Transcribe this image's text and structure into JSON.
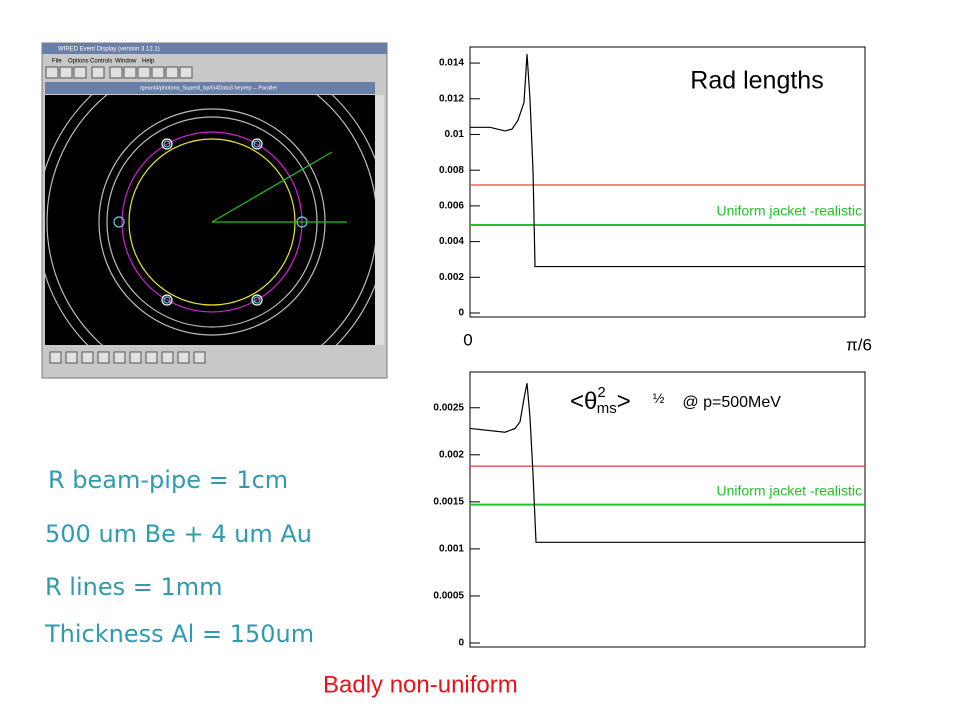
{
  "chart_data": [
    {
      "type": "line",
      "title": "Rad lengths",
      "xlim": [
        0,
        0.5236
      ],
      "xticks": [
        0,
        {
          "value": 0.5236,
          "label": "π/6"
        }
      ],
      "ylim": [
        0,
        0.0149
      ],
      "yticks": [
        0,
        0.002,
        0.004,
        0.006,
        0.008,
        0.01,
        0.012,
        0.014
      ],
      "series": [
        {
          "color": "#000000",
          "x": [
            0,
            0.0265,
            0.0464,
            0.0557,
            0.0636,
            0.0716,
            0.0756,
            0.0795,
            0.0835,
            0.0862,
            0.5236
          ],
          "values": [
            0.0104,
            0.0104,
            0.0102,
            0.0103,
            0.0108,
            0.0118,
            0.0145,
            0.012,
            0.008,
            0.0026,
            0.0026
          ]
        }
      ],
      "hlines": [
        {
          "color": "#e8413c",
          "value": 0.00717
        },
        {
          "color": "#22c02a",
          "value": 0.00493,
          "label": "Uniform jacket -realistic"
        }
      ]
    },
    {
      "type": "line",
      "title_parts": [
        "<θ",
        "2",
        "ms",
        ">",
        "½",
        "@ p=500MeV"
      ],
      "xlim": [
        0,
        0.5236
      ],
      "ylim": [
        0,
        0.00288
      ],
      "yticks": [
        0,
        0.0005,
        0.001,
        0.0015,
        0.002,
        0.0025
      ],
      "series": [
        {
          "color": "#000000",
          "x": [
            0,
            0.0464,
            0.0597,
            0.0663,
            0.0716,
            0.0756,
            0.0795,
            0.0835,
            0.0875,
            0.5236
          ],
          "values": [
            0.00228,
            0.00224,
            0.00228,
            0.00235,
            0.0026,
            0.00276,
            0.0024,
            0.0018,
            0.00107,
            0.00107
          ]
        }
      ],
      "hlines": [
        {
          "color": "#e8413c",
          "value": 0.00188
        },
        {
          "color": "#22c02a",
          "value": 0.00147,
          "label": "Uniform jacket -realistic"
        }
      ]
    }
  ],
  "screenshot": {
    "window_title": "WIRED Event Display (version 3.12.1)",
    "menu": [
      "File",
      "Options",
      "Controls",
      "Window",
      "Help"
    ],
    "view_title": "/geant4/photons_Super8_bp/G4Data3.heprep -- Parallel"
  },
  "notes": [
    "R beam-pipe = 1cm",
    "500 um Be + 4 um Au",
    "R lines = 1mm",
    "Thickness Al = 150um"
  ],
  "conclusion": "Badly non-uniform"
}
